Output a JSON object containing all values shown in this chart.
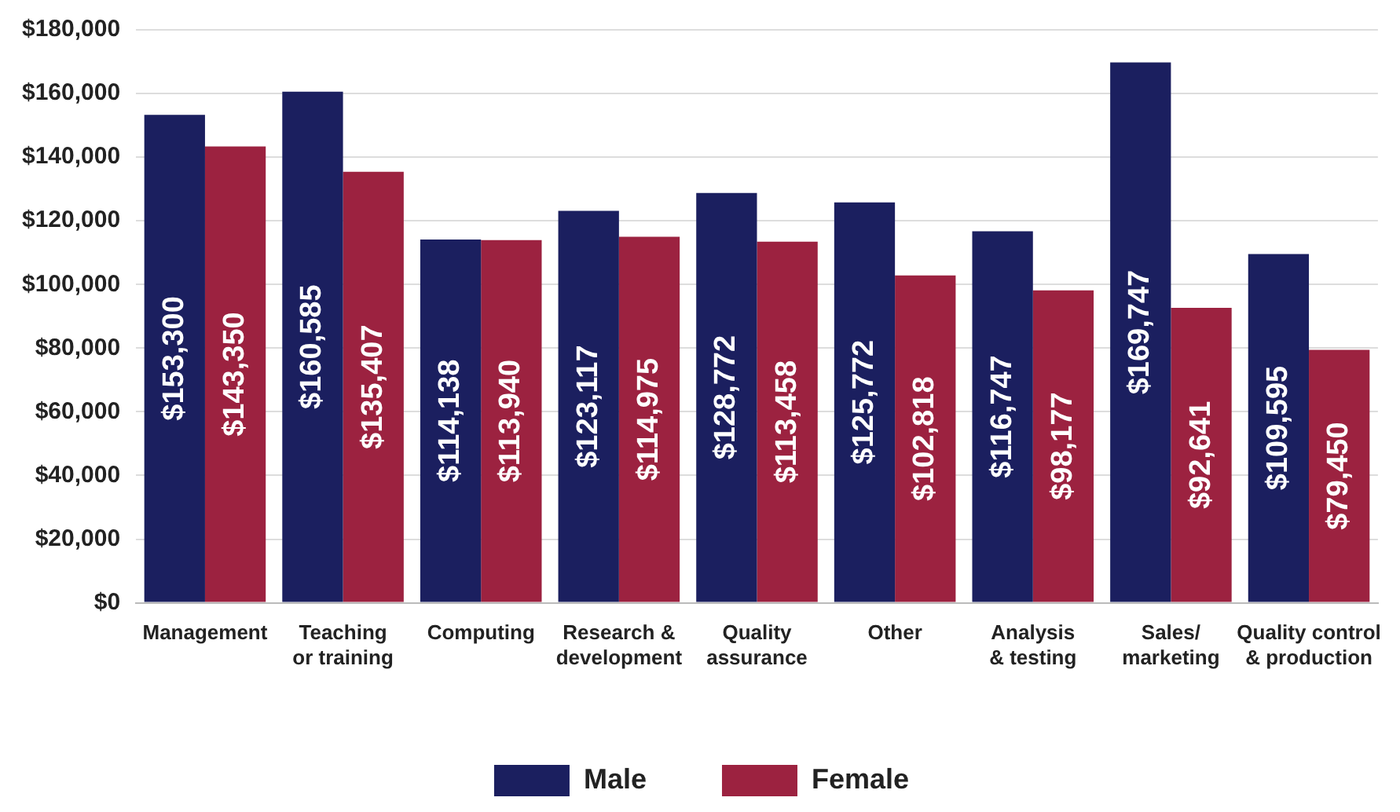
{
  "chart_data": {
    "type": "bar",
    "categories": [
      "Management",
      "Teaching or training",
      "Computing",
      "Research & development",
      "Quality assurance",
      "Other",
      "Analysis & testing",
      "Sales/marketing",
      "Quality control & production"
    ],
    "series": [
      {
        "name": "Male",
        "color": "#1b1f5f",
        "values": [
          153300,
          160585,
          114138,
          123117,
          128772,
          125772,
          116747,
          169747,
          109595
        ],
        "value_labels": [
          "$153,300",
          "$160,585",
          "$114,138",
          "$123,117",
          "$128,772",
          "$125,772",
          "$116,747",
          "$169,747",
          "$109,595"
        ]
      },
      {
        "name": "Female",
        "color": "#9c2240",
        "values": [
          143350,
          135407,
          113940,
          114975,
          113458,
          102818,
          98177,
          92641,
          79450
        ],
        "value_labels": [
          "$143,350",
          "$135,407",
          "$113,940",
          "$114,975",
          "$113,458",
          "$102,818",
          "$98,177",
          "$92,641",
          "$79,450"
        ]
      }
    ],
    "ylim": [
      0,
      180000
    ],
    "yticks": [
      {
        "value": 0,
        "label": "$0"
      },
      {
        "value": 20000,
        "label": "$20,000"
      },
      {
        "value": 40000,
        "label": "$40,000"
      },
      {
        "value": 60000,
        "label": "$60,000"
      },
      {
        "value": 80000,
        "label": "$80,000"
      },
      {
        "value": 100000,
        "label": "$100,000"
      },
      {
        "value": 120000,
        "label": "$120,000"
      },
      {
        "value": 140000,
        "label": "$140,000"
      },
      {
        "value": 160000,
        "label": "$160,000"
      },
      {
        "value": 180000,
        "label": "$180,000"
      }
    ],
    "grid": "y",
    "legend": "bottom"
  }
}
